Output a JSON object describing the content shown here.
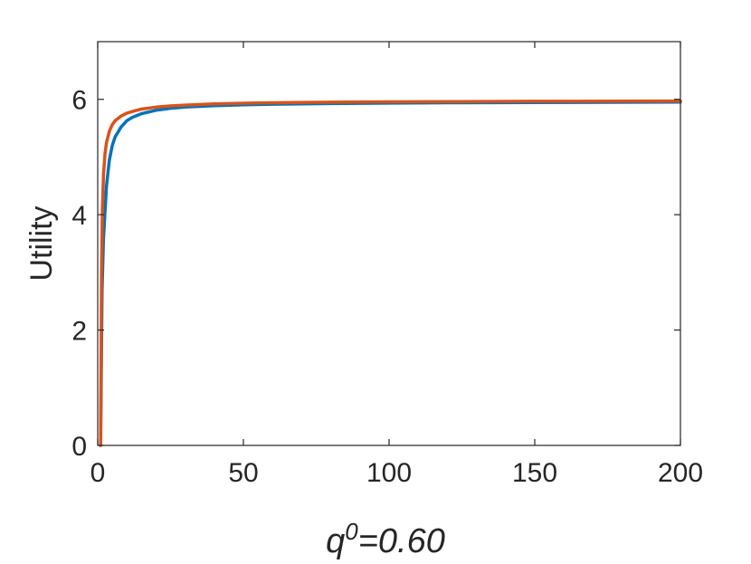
{
  "chart_data": {
    "type": "line",
    "title": "",
    "xlabel": {
      "base": "q",
      "sup": "0",
      "rest": "=0.60"
    },
    "ylabel": "Utility",
    "xlim": [
      0,
      200
    ],
    "ylim": [
      0,
      7
    ],
    "xticks": [
      0,
      50,
      100,
      150,
      200
    ],
    "xtick_labels": [
      "0",
      "50",
      "100",
      "150",
      "200"
    ],
    "yticks": [
      0,
      2,
      4,
      6
    ],
    "ytick_labels": [
      "0",
      "2",
      "4",
      "6"
    ],
    "grid": false,
    "series": [
      {
        "color": "#0072BD",
        "x": [
          1,
          1.5,
          2,
          3,
          4,
          5,
          6,
          8,
          10,
          12,
          15,
          20,
          25,
          30,
          40,
          50,
          60,
          80,
          100,
          120,
          150,
          175,
          200
        ],
        "y": [
          0,
          2.7,
          3.6,
          4.5,
          4.95,
          5.2,
          5.35,
          5.52,
          5.63,
          5.69,
          5.75,
          5.81,
          5.845,
          5.865,
          5.89,
          5.905,
          5.915,
          5.927,
          5.935,
          5.94,
          5.946,
          5.949,
          5.952
        ]
      },
      {
        "color": "#D95319",
        "x": [
          1,
          1.3,
          1.6,
          2,
          2.5,
          3,
          4,
          5,
          6,
          8,
          10,
          12,
          15,
          20,
          25,
          30,
          40,
          50,
          60,
          80,
          100,
          120,
          150,
          175,
          200
        ],
        "y": [
          0,
          3.0,
          4.1,
          4.7,
          5.05,
          5.25,
          5.45,
          5.56,
          5.63,
          5.71,
          5.76,
          5.79,
          5.83,
          5.865,
          5.885,
          5.9,
          5.92,
          5.932,
          5.94,
          5.95,
          5.956,
          5.96,
          5.965,
          5.968,
          5.97
        ]
      }
    ]
  }
}
